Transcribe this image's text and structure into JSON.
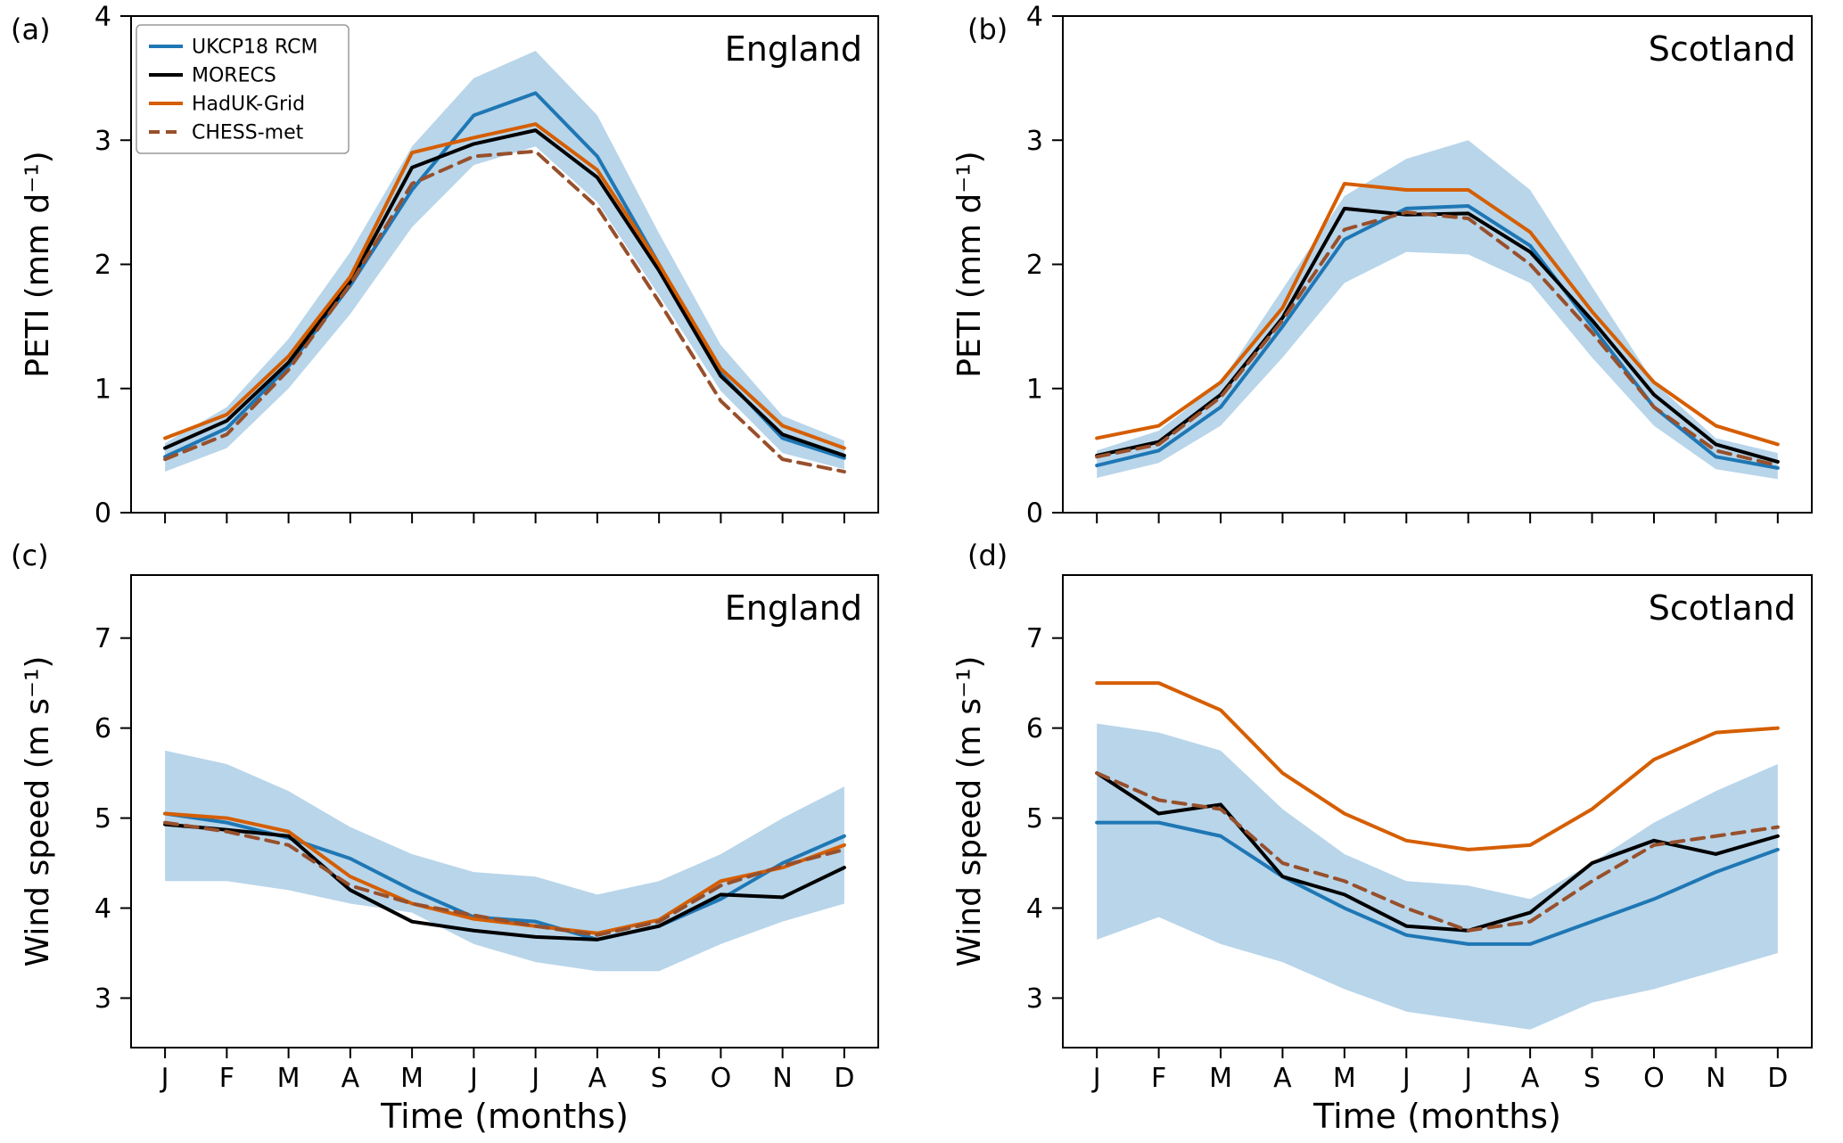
{
  "figure": {
    "background": "#ffffff",
    "xlabel": "Time (months)",
    "colors": {
      "ukcp18_rcm": "#1f77b4",
      "morecs": "#000000",
      "haduk_grid": "#d55e00",
      "chess_met": "#97502c",
      "uncertainty_band": "#b8d5ea",
      "axes": "#000000"
    }
  },
  "chart_data": [
    {
      "id": "a",
      "panel_label": "(a)",
      "region": "England",
      "type": "line",
      "ylabel": "PETI (mm d⁻¹)",
      "ylim": [
        0,
        4
      ],
      "yticks": [
        0,
        1,
        2,
        3,
        4
      ],
      "categories": [
        "J",
        "F",
        "M",
        "A",
        "M",
        "J",
        "J",
        "A",
        "S",
        "O",
        "N",
        "D"
      ],
      "show_xticklabels": false,
      "show_xlabel": false,
      "show_legend": true,
      "band": {
        "color": "#b8d5ea",
        "lower": [
          0.33,
          0.52,
          1.0,
          1.6,
          2.3,
          2.8,
          2.95,
          2.5,
          1.75,
          0.98,
          0.48,
          0.35
        ],
        "upper": [
          0.56,
          0.85,
          1.4,
          2.1,
          2.95,
          3.5,
          3.72,
          3.2,
          2.25,
          1.35,
          0.78,
          0.58
        ]
      },
      "series": [
        {
          "name": "UKCP18 RCM",
          "color": "#1f77b4",
          "style": "solid",
          "values": [
            0.45,
            0.68,
            1.18,
            1.83,
            2.6,
            3.2,
            3.38,
            2.87,
            2.0,
            1.12,
            0.6,
            0.44
          ]
        },
        {
          "name": "MORECS",
          "color": "#000000",
          "style": "solid",
          "values": [
            0.52,
            0.74,
            1.21,
            1.86,
            2.78,
            2.97,
            3.08,
            2.7,
            1.95,
            1.1,
            0.63,
            0.46
          ]
        },
        {
          "name": "HadUK-Grid",
          "color": "#d55e00",
          "style": "solid",
          "values": [
            0.6,
            0.79,
            1.26,
            1.9,
            2.9,
            3.02,
            3.13,
            2.76,
            2.0,
            1.16,
            0.7,
            0.52
          ]
        },
        {
          "name": "CHESS-met",
          "color": "#97502c",
          "style": "dashed",
          "values": [
            0.43,
            0.63,
            1.15,
            1.84,
            2.65,
            2.87,
            2.91,
            2.46,
            1.7,
            0.9,
            0.43,
            0.33
          ]
        }
      ]
    },
    {
      "id": "b",
      "panel_label": "(b)",
      "region": "Scotland",
      "type": "line",
      "ylabel": "PETI (mm d⁻¹)",
      "ylim": [
        0,
        4
      ],
      "yticks": [
        0,
        1,
        2,
        3,
        4
      ],
      "categories": [
        "J",
        "F",
        "M",
        "A",
        "M",
        "J",
        "J",
        "A",
        "S",
        "O",
        "N",
        "D"
      ],
      "show_xticklabels": false,
      "show_xlabel": false,
      "show_legend": false,
      "band": {
        "color": "#b8d5ea",
        "lower": [
          0.28,
          0.4,
          0.7,
          1.25,
          1.85,
          2.1,
          2.08,
          1.85,
          1.25,
          0.7,
          0.35,
          0.27
        ],
        "upper": [
          0.5,
          0.66,
          1.05,
          1.8,
          2.55,
          2.85,
          3.0,
          2.6,
          1.82,
          1.05,
          0.6,
          0.48
        ]
      },
      "series": [
        {
          "name": "UKCP18 RCM",
          "color": "#1f77b4",
          "style": "solid",
          "values": [
            0.38,
            0.5,
            0.85,
            1.5,
            2.2,
            2.45,
            2.47,
            2.15,
            1.5,
            0.85,
            0.45,
            0.36
          ]
        },
        {
          "name": "MORECS",
          "color": "#000000",
          "style": "solid",
          "values": [
            0.46,
            0.57,
            0.95,
            1.57,
            2.45,
            2.4,
            2.41,
            2.1,
            1.55,
            0.95,
            0.55,
            0.41
          ]
        },
        {
          "name": "HadUK-Grid",
          "color": "#d55e00",
          "style": "solid",
          "values": [
            0.6,
            0.7,
            1.05,
            1.65,
            2.65,
            2.6,
            2.6,
            2.26,
            1.62,
            1.05,
            0.7,
            0.55
          ]
        },
        {
          "name": "CHESS-met",
          "color": "#97502c",
          "style": "dashed",
          "values": [
            0.45,
            0.55,
            0.93,
            1.55,
            2.28,
            2.42,
            2.37,
            2.0,
            1.45,
            0.85,
            0.5,
            0.38
          ]
        }
      ]
    },
    {
      "id": "c",
      "panel_label": "(c)",
      "region": "England",
      "type": "line",
      "ylabel": "Wind speed (m s⁻¹)",
      "ylim": [
        2.45,
        7.7
      ],
      "yticks": [
        3,
        4,
        5,
        6,
        7
      ],
      "categories": [
        "J",
        "F",
        "M",
        "A",
        "M",
        "J",
        "J",
        "A",
        "S",
        "O",
        "N",
        "D"
      ],
      "show_xticklabels": true,
      "show_xlabel": true,
      "show_legend": false,
      "band": {
        "color": "#b8d5ea",
        "lower": [
          4.3,
          4.3,
          4.2,
          4.05,
          3.95,
          3.6,
          3.4,
          3.3,
          3.3,
          3.6,
          3.85,
          4.05
        ],
        "upper": [
          5.75,
          5.6,
          5.3,
          4.9,
          4.6,
          4.4,
          4.35,
          4.15,
          4.3,
          4.6,
          5.0,
          5.35
        ]
      },
      "series": [
        {
          "name": "UKCP18 RCM",
          "color": "#1f77b4",
          "style": "solid",
          "values": [
            5.05,
            4.95,
            4.78,
            4.55,
            4.2,
            3.9,
            3.85,
            3.65,
            3.8,
            4.1,
            4.5,
            4.8
          ]
        },
        {
          "name": "MORECS",
          "color": "#000000",
          "style": "solid",
          "values": [
            4.93,
            4.87,
            4.8,
            4.2,
            3.85,
            3.75,
            3.68,
            3.65,
            3.8,
            4.15,
            4.12,
            4.45
          ]
        },
        {
          "name": "HadUK-Grid",
          "color": "#d55e00",
          "style": "solid",
          "values": [
            5.05,
            5.0,
            4.85,
            4.35,
            4.05,
            3.88,
            3.8,
            3.72,
            3.87,
            4.3,
            4.45,
            4.7
          ]
        },
        {
          "name": "CHESS-met",
          "color": "#97502c",
          "style": "dashed",
          "values": [
            4.95,
            4.85,
            4.7,
            4.25,
            4.05,
            3.92,
            3.8,
            3.7,
            3.85,
            4.25,
            4.47,
            4.65
          ]
        }
      ]
    },
    {
      "id": "d",
      "panel_label": "(d)",
      "region": "Scotland",
      "type": "line",
      "ylabel": "Wind speed (m s⁻¹)",
      "ylim": [
        2.45,
        7.7
      ],
      "yticks": [
        3,
        4,
        5,
        6,
        7
      ],
      "categories": [
        "J",
        "F",
        "M",
        "A",
        "M",
        "J",
        "J",
        "A",
        "S",
        "O",
        "N",
        "D"
      ],
      "show_xticklabels": true,
      "show_xlabel": true,
      "show_legend": false,
      "band": {
        "color": "#b8d5ea",
        "lower": [
          3.65,
          3.9,
          3.6,
          3.4,
          3.1,
          2.85,
          2.75,
          2.65,
          2.95,
          3.1,
          3.3,
          3.5
        ],
        "upper": [
          6.05,
          5.95,
          5.75,
          5.1,
          4.6,
          4.3,
          4.25,
          4.1,
          4.5,
          4.95,
          5.3,
          5.6
        ]
      },
      "series": [
        {
          "name": "UKCP18 RCM",
          "color": "#1f77b4",
          "style": "solid",
          "values": [
            4.95,
            4.95,
            4.8,
            4.35,
            4.0,
            3.7,
            3.6,
            3.6,
            3.85,
            4.1,
            4.4,
            4.65
          ]
        },
        {
          "name": "MORECS",
          "color": "#000000",
          "style": "solid",
          "values": [
            5.5,
            5.05,
            5.15,
            4.35,
            4.15,
            3.8,
            3.75,
            3.95,
            4.5,
            4.75,
            4.6,
            4.8
          ]
        },
        {
          "name": "HadUK-Grid",
          "color": "#d55e00",
          "style": "solid",
          "values": [
            6.5,
            6.5,
            6.2,
            5.5,
            5.05,
            4.75,
            4.65,
            4.7,
            5.1,
            5.65,
            5.95,
            6.0
          ]
        },
        {
          "name": "CHESS-met",
          "color": "#97502c",
          "style": "dashed",
          "values": [
            5.5,
            5.2,
            5.1,
            4.5,
            4.3,
            4.0,
            3.75,
            3.85,
            4.3,
            4.7,
            4.8,
            4.9
          ]
        }
      ]
    }
  ]
}
